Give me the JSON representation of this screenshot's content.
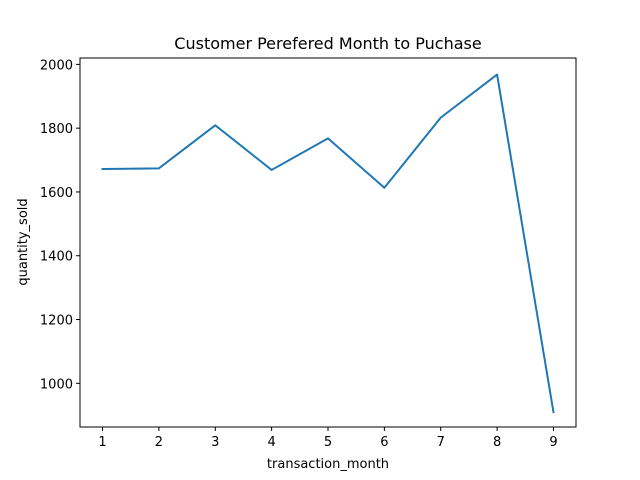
{
  "chart_data": {
    "type": "line",
    "title": "Customer Perefered Month to Puchase",
    "xlabel": "transaction_month",
    "ylabel": "quantity_sold",
    "x": [
      1,
      2,
      3,
      4,
      5,
      6,
      7,
      8,
      9
    ],
    "series": [
      {
        "values": [
          1672,
          1674,
          1809,
          1669,
          1768,
          1613,
          1833,
          1968,
          910
        ],
        "color": "#1f77b4"
      }
    ],
    "xlim": [
      0.6,
      9.4
    ],
    "ylim": [
      863,
      2020
    ],
    "xticks": [
      1,
      2,
      3,
      4,
      5,
      6,
      7,
      8,
      9
    ],
    "yticks": [
      1000,
      1200,
      1400,
      1600,
      1800,
      2000
    ],
    "grid": false,
    "legend": "none"
  }
}
